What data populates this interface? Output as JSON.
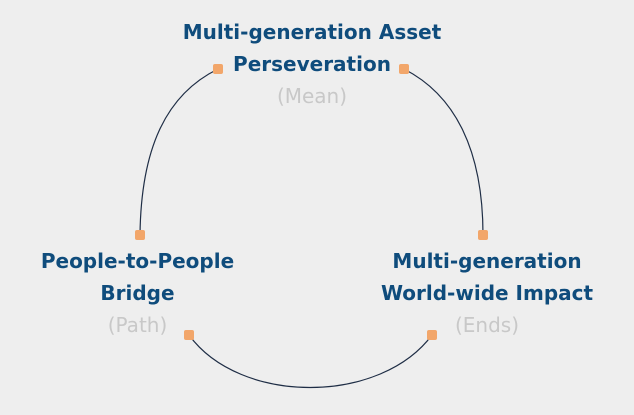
{
  "colors": {
    "background": "#eeeeee",
    "title_text": "#0f4c7c",
    "subtitle_text": "#c8c8c8",
    "connector_line": "#1e2d45",
    "connector_marker": "#f2a66a"
  },
  "nodes": {
    "top": {
      "line1": "Multi-generation Asset",
      "line2": "Perseveration",
      "subtitle": "(Mean)"
    },
    "left": {
      "line1": "People-to-People",
      "line2": "Bridge",
      "subtitle": "(Path)"
    },
    "right": {
      "line1": "Multi-generation",
      "line2": "World-wide Impact",
      "subtitle": "(Ends)"
    }
  }
}
